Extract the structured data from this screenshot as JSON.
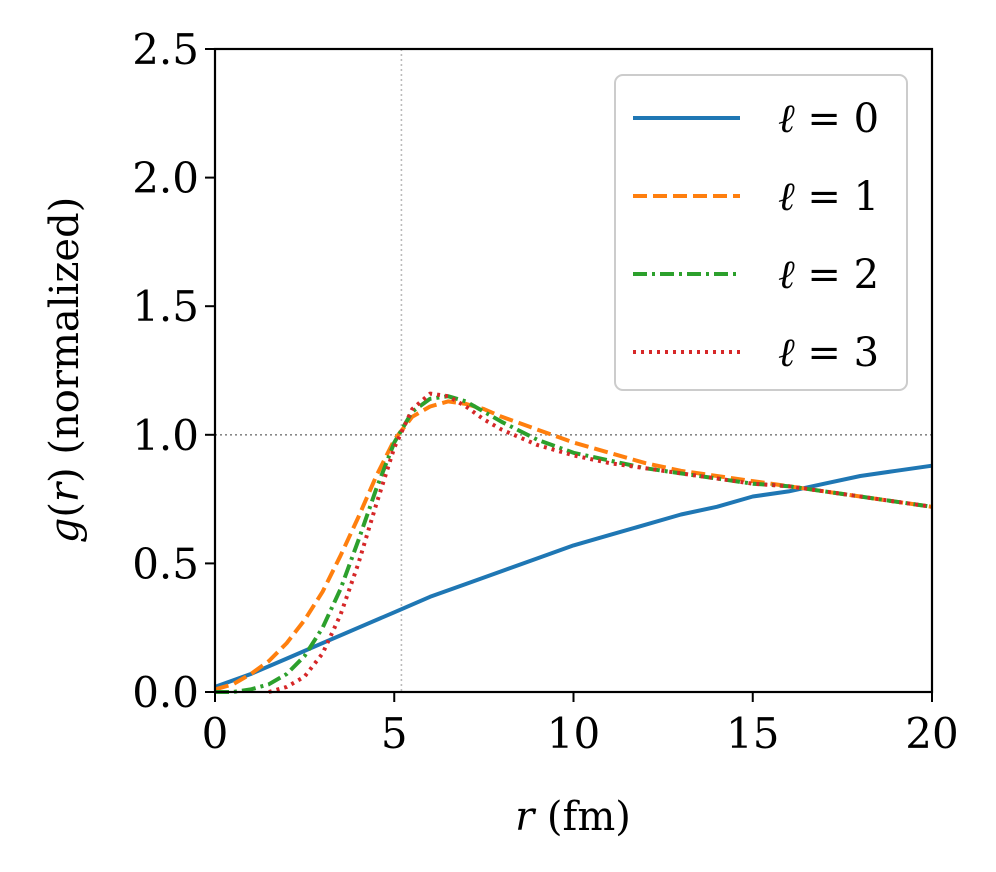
{
  "chart_data": {
    "type": "line",
    "title": "",
    "xlabel": {
      "var": "r",
      "rest": " (fm)"
    },
    "ylabel": {
      "var": "g",
      "open": "(",
      "arg": "r",
      "close": ")",
      "rest": " (normalized)"
    },
    "xlim": [
      0,
      20
    ],
    "ylim": [
      0,
      2.5
    ],
    "xticks": [
      0,
      5,
      10,
      15,
      20
    ],
    "xtick_labels": [
      "0",
      "5",
      "10",
      "15",
      "20"
    ],
    "yticks": [
      0,
      0.5,
      1.0,
      1.5,
      2.0,
      2.5
    ],
    "ytick_labels": [
      "0.0",
      "0.5",
      "1.0",
      "1.5",
      "2.0",
      "2.5"
    ],
    "reference_lines": {
      "horizontal_y": 1.0,
      "vertical_x": 5.2
    },
    "legend_position": "top-right",
    "series": [
      {
        "name": "ℓ = 0",
        "symbol": "ℓ",
        "eq": " = ",
        "num": "0",
        "color": "#1f77b4",
        "style": "solid",
        "x": [
          0,
          1,
          2,
          3,
          4,
          5,
          6,
          7,
          8,
          9,
          10,
          11,
          12,
          13,
          14,
          15,
          16,
          17,
          18,
          19,
          20
        ],
        "y": [
          0.02,
          0.07,
          0.13,
          0.19,
          0.25,
          0.31,
          0.37,
          0.42,
          0.47,
          0.52,
          0.57,
          0.61,
          0.65,
          0.69,
          0.72,
          0.76,
          0.78,
          0.81,
          0.84,
          0.86,
          0.88
        ]
      },
      {
        "name": "ℓ = 1",
        "symbol": "ℓ",
        "eq": " = ",
        "num": "1",
        "color": "#ff7f0e",
        "style": "dashed",
        "x": [
          0,
          0.5,
          1,
          1.5,
          2,
          2.5,
          3,
          3.5,
          4,
          4.5,
          5,
          5.5,
          6,
          6.5,
          7,
          7.5,
          8,
          9,
          10,
          11,
          12,
          13,
          14,
          15,
          16,
          17,
          18,
          19,
          20
        ],
        "y": [
          0.01,
          0.03,
          0.07,
          0.12,
          0.19,
          0.28,
          0.39,
          0.53,
          0.68,
          0.84,
          0.98,
          1.07,
          1.11,
          1.13,
          1.12,
          1.1,
          1.07,
          1.02,
          0.97,
          0.93,
          0.89,
          0.86,
          0.84,
          0.82,
          0.8,
          0.78,
          0.76,
          0.74,
          0.72
        ]
      },
      {
        "name": "ℓ = 2",
        "symbol": "ℓ",
        "eq": " = ",
        "num": "2",
        "color": "#2ca02c",
        "style": "dashdot",
        "x": [
          0,
          0.5,
          1,
          1.5,
          2,
          2.5,
          3,
          3.5,
          4,
          4.5,
          5,
          5.5,
          6,
          6.5,
          7,
          7.5,
          8,
          9,
          10,
          11,
          12,
          13,
          14,
          15,
          16,
          17,
          18,
          19,
          20
        ],
        "y": [
          0.0,
          0.0,
          0.01,
          0.03,
          0.07,
          0.14,
          0.25,
          0.4,
          0.59,
          0.79,
          0.97,
          1.09,
          1.14,
          1.15,
          1.13,
          1.09,
          1.05,
          0.98,
          0.93,
          0.9,
          0.87,
          0.85,
          0.83,
          0.81,
          0.8,
          0.78,
          0.76,
          0.74,
          0.72
        ]
      },
      {
        "name": "ℓ = 3",
        "symbol": "ℓ",
        "eq": " = ",
        "num": "3",
        "color": "#d62728",
        "style": "dotted",
        "x": [
          1.5,
          2,
          2.5,
          3,
          3.5,
          4,
          4.5,
          5,
          5.5,
          6,
          6.5,
          7,
          7.5,
          8,
          9,
          10,
          11,
          12,
          13,
          14,
          15,
          16,
          17,
          18,
          19,
          20
        ],
        "y": [
          0.0,
          0.02,
          0.06,
          0.15,
          0.3,
          0.5,
          0.73,
          0.95,
          1.1,
          1.16,
          1.15,
          1.11,
          1.06,
          1.02,
          0.96,
          0.92,
          0.89,
          0.87,
          0.85,
          0.83,
          0.81,
          0.8,
          0.78,
          0.76,
          0.74,
          0.72
        ]
      }
    ]
  }
}
